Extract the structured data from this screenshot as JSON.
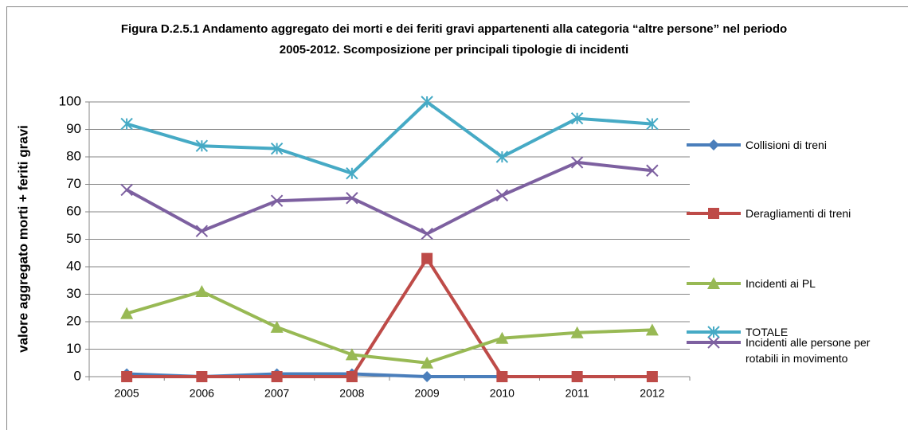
{
  "chart_data": {
    "type": "line",
    "title": "Figura D.2.5.1 Andamento aggregato dei morti e dei feriti  gravi appartenenti alla categoria “altre persone” nel periodo 2005-2012. Scomposizione per principali tipologie di incidenti",
    "y_label": "valore aggregato morti + feriti gravi",
    "categories": [
      "2005",
      "2006",
      "2007",
      "2008",
      "2009",
      "2010",
      "2011",
      "2012"
    ],
    "series": [
      {
        "name": "Collisioni di treni",
        "color": "#4a7ebb",
        "marker": "diamond",
        "values": [
          1,
          0,
          1,
          1,
          0,
          0,
          0,
          0
        ]
      },
      {
        "name": "Deragliamenti di treni",
        "color": "#be4b48",
        "marker": "square",
        "values": [
          0,
          0,
          0,
          0,
          43,
          0,
          0,
          0
        ]
      },
      {
        "name": "Incidenti ai PL",
        "color": "#98b954",
        "marker": "triangle",
        "values": [
          23,
          31,
          18,
          8,
          5,
          14,
          16,
          17
        ]
      },
      {
        "name": "Incidenti alle persone per rotabili in movimento",
        "color": "#7d60a0",
        "marker": "x",
        "values": [
          68,
          53,
          64,
          65,
          52,
          66,
          78,
          75
        ]
      },
      {
        "name": "TOTALE",
        "color": "#46aac5",
        "marker": "star",
        "values": [
          92,
          84,
          83,
          74,
          100,
          80,
          94,
          92
        ]
      }
    ],
    "ylim": [
      0,
      100
    ],
    "yticks": [
      0,
      10,
      20,
      30,
      40,
      50,
      60,
      70,
      80,
      90,
      100
    ],
    "grid": true,
    "legend": "right"
  }
}
